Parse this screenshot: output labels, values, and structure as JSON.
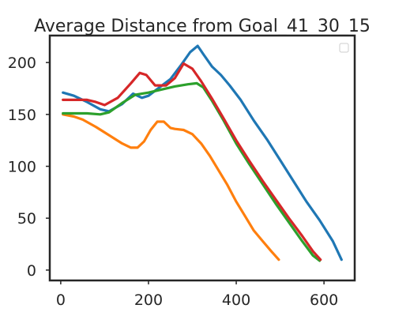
{
  "chart_data": {
    "type": "line",
    "title": "Average Distance from Goal_41_30_15",
    "xlabel": "",
    "ylabel": "",
    "xlim": [
      -25,
      670
    ],
    "ylim": [
      -10,
      226
    ],
    "xticks": [
      0,
      200,
      400,
      600
    ],
    "yticks": [
      0,
      50,
      100,
      150,
      200
    ],
    "grid": false,
    "legend": "top-right",
    "series": [
      {
        "color": "#1f77b4",
        "x": [
          5,
          30,
          60,
          90,
          110,
          140,
          165,
          185,
          200,
          225,
          250,
          275,
          295,
          312,
          325,
          345,
          365,
          385,
          410,
          440,
          470,
          500,
          530,
          560,
          590,
          620,
          640
        ],
        "y": [
          171,
          168,
          162,
          155,
          153,
          160,
          170,
          166,
          168,
          176,
          184,
          198,
          210,
          216,
          208,
          196,
          188,
          178,
          164,
          144,
          126,
          106,
          86,
          66,
          48,
          28,
          10
        ]
      },
      {
        "color": "#ff7f0e",
        "x": [
          5,
          30,
          50,
          80,
          110,
          140,
          160,
          175,
          190,
          205,
          220,
          235,
          250,
          260,
          280,
          300,
          320,
          340,
          360,
          380,
          400,
          420,
          440,
          460,
          480,
          497
        ],
        "y": [
          150,
          148,
          145,
          138,
          130,
          122,
          118,
          118,
          124,
          135,
          143,
          143,
          137,
          136,
          135,
          131,
          122,
          110,
          96,
          82,
          66,
          52,
          38,
          28,
          18,
          10
        ]
      },
      {
        "color": "#2ca02c",
        "x": [
          5,
          30,
          60,
          90,
          110,
          140,
          170,
          200,
          230,
          260,
          290,
          310,
          325,
          345,
          370,
          400,
          430,
          460,
          490,
          520,
          550,
          575,
          590
        ],
        "y": [
          151,
          151,
          151,
          150,
          152,
          161,
          169,
          171,
          174,
          177,
          179,
          180,
          176,
          163,
          145,
          122,
          102,
          83,
          64,
          46,
          28,
          14,
          9
        ]
      },
      {
        "color": "#d62728",
        "x": [
          5,
          30,
          60,
          80,
          100,
          130,
          160,
          180,
          195,
          215,
          240,
          260,
          280,
          300,
          320,
          345,
          370,
          400,
          430,
          460,
          490,
          520,
          550,
          575,
          592
        ],
        "y": [
          164,
          164,
          164,
          162,
          159,
          166,
          180,
          190,
          188,
          178,
          178,
          185,
          199,
          194,
          182,
          165,
          147,
          125,
          105,
          86,
          68,
          50,
          33,
          18,
          10
        ]
      }
    ]
  }
}
